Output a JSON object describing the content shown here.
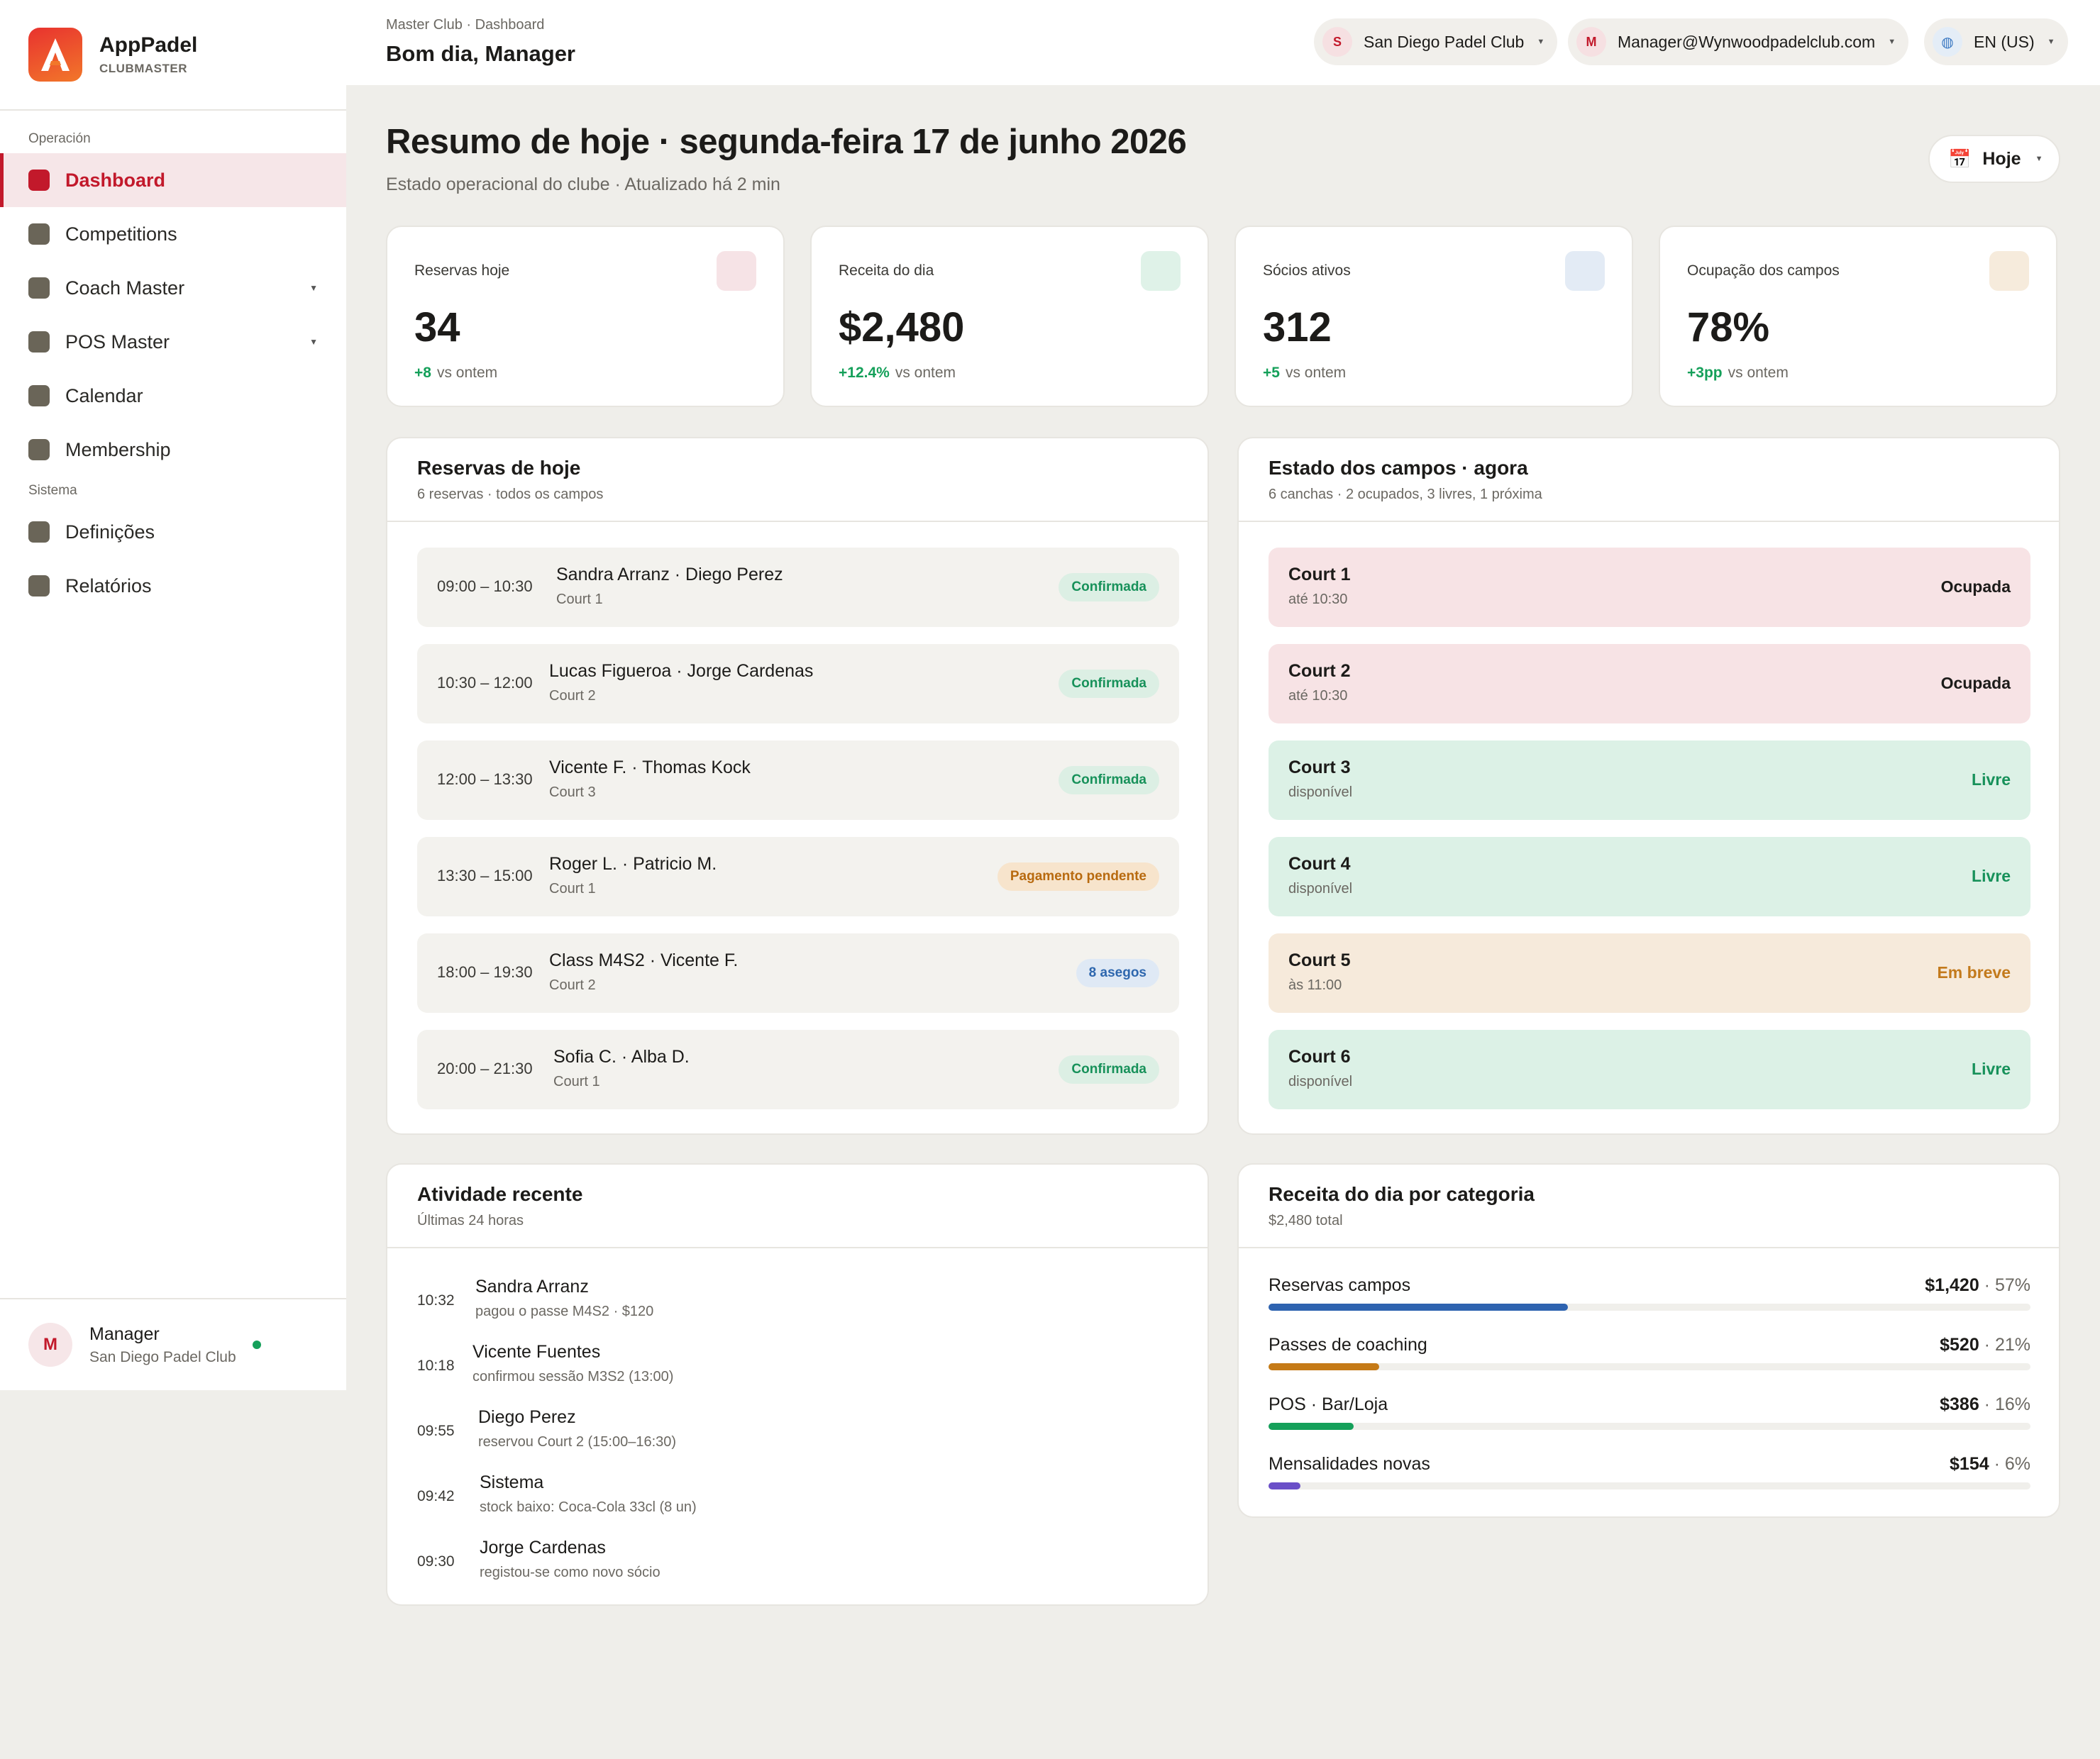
{
  "brand": {
    "name": "AppPadel",
    "sub": "CLUBMASTER"
  },
  "sidebar": {
    "section_operation": "Operación",
    "section_system": "Sistema",
    "items": [
      {
        "label": "Dashboard"
      },
      {
        "label": "Competitions"
      },
      {
        "label": "Coach Master"
      },
      {
        "label": "POS Master"
      },
      {
        "label": "Calendar"
      },
      {
        "label": "Membership"
      },
      {
        "label": "Definições"
      },
      {
        "label": "Relatórios"
      }
    ],
    "user": {
      "initial": "M",
      "name": "Manager",
      "club": "San Diego Padel Club"
    }
  },
  "topbar": {
    "breadcrumb": "Master Club · Dashboard",
    "greeting": "Bom dia, Manager",
    "club": {
      "initial": "S",
      "label": "San Diego Padel Club"
    },
    "account": {
      "initial": "M",
      "label": "Manager@Wynwoodpadelclub.com"
    },
    "lang": {
      "label": "EN (US)"
    }
  },
  "header": {
    "title": "Resumo de hoje · segunda-feira 17 de junho 2026",
    "subtitle": "Estado operacional do clube · Atualizado há 2 min",
    "date_button": "Hoje"
  },
  "kpis": [
    {
      "label": "Reservas hoje",
      "value": "34",
      "delta": "+8",
      "delta_suffix": "vs ontem",
      "color": "#f6e3e6"
    },
    {
      "label": "Receita do dia",
      "value": "$2,480",
      "delta": "+12.4%",
      "delta_suffix": "vs ontem",
      "color": "#dff2e8"
    },
    {
      "label": "Sócios ativos",
      "value": "312",
      "delta": "+5",
      "delta_suffix": "vs ontem",
      "color": "#e3ebf5"
    },
    {
      "label": "Ocupação dos campos",
      "value": "78%",
      "delta": "+3pp",
      "delta_suffix": "vs ontem",
      "color": "#f6ebdc"
    }
  ],
  "reservations": {
    "title": "Reservas de hoje",
    "subtitle": "6 reservas · todos os campos",
    "rows": [
      {
        "time": "09:00 – 10:30",
        "names": "Sandra Arranz · Diego Perez",
        "court": "Court 1",
        "status": "Confirmada",
        "kind": "ok"
      },
      {
        "time": "10:30 – 12:00",
        "names": "Lucas Figueroa · Jorge Cardenas",
        "court": "Court 2",
        "status": "Confirmada",
        "kind": "ok"
      },
      {
        "time": "12:00 – 13:30",
        "names": "Vicente F. · Thomas Kock",
        "court": "Court 3",
        "status": "Confirmada",
        "kind": "ok"
      },
      {
        "time": "13:30 – 15:00",
        "names": "Roger L. · Patricio M.",
        "court": "Court 1",
        "status": "Pagamento pendente",
        "kind": "pend"
      },
      {
        "time": "18:00 – 19:30",
        "names": "Class M4S2 · Vicente F.",
        "court": "Court 2",
        "status": "8 asegos",
        "kind": "info"
      },
      {
        "time": "20:00 – 21:30",
        "names": "Sofia C. · Alba D.",
        "court": "Court 1",
        "status": "Confirmada",
        "kind": "ok"
      }
    ]
  },
  "courts": {
    "title": "Estado dos campos · agora",
    "subtitle": "6 canchas · 2 ocupados, 3 livres, 1 próxima",
    "rows": [
      {
        "name": "Court 1",
        "info": "até 10:30",
        "state": "Ocupada",
        "kind": "busy"
      },
      {
        "name": "Court 2",
        "info": "até 10:30",
        "state": "Ocupada",
        "kind": "busy"
      },
      {
        "name": "Court 3",
        "info": "disponível",
        "state": "Livre",
        "kind": "free"
      },
      {
        "name": "Court 4",
        "info": "disponível",
        "state": "Livre",
        "kind": "free"
      },
      {
        "name": "Court 5",
        "info": "às 11:00",
        "state": "Em breve",
        "kind": "soon"
      },
      {
        "name": "Court 6",
        "info": "disponível",
        "state": "Livre",
        "kind": "free"
      }
    ]
  },
  "activity": {
    "title": "Atividade recente",
    "subtitle": "Últimas 24 horas",
    "rows": [
      {
        "time": "10:32",
        "name": "Sandra Arranz",
        "desc": "pagou o passe M4S2 · $120"
      },
      {
        "time": "10:18",
        "name": "Vicente Fuentes",
        "desc": "confirmou sessão M3S2 (13:00)"
      },
      {
        "time": "09:55",
        "name": "Diego Perez",
        "desc": "reservou Court 2 (15:00–16:30)"
      },
      {
        "time": "09:42",
        "name": "Sistema",
        "desc": "stock baixo: Coca-Cola 33cl (8 un)"
      },
      {
        "time": "09:30",
        "name": "Jorge Cardenas",
        "desc": "registou-se como novo sócio"
      }
    ]
  },
  "revenue": {
    "title": "Receita do dia por categoria",
    "subtitle": "$2,480 total",
    "rows": [
      {
        "label": "Reservas campos",
        "amount": "$1,420",
        "pct_label": "57%",
        "share": 0.393,
        "color": "#2e63b0"
      },
      {
        "label": "Passes de coaching",
        "amount": "$520",
        "pct_label": "21%",
        "share": 0.145,
        "color": "#c57a17"
      },
      {
        "label": "POS · Bar/Loja",
        "amount": "$386",
        "pct_label": "16%",
        "share": 0.112,
        "color": "#15a05a"
      },
      {
        "label": "Mensalidades novas",
        "amount": "$154",
        "pct_label": "6%",
        "share": 0.042,
        "color": "#6a4fc8"
      }
    ]
  }
}
